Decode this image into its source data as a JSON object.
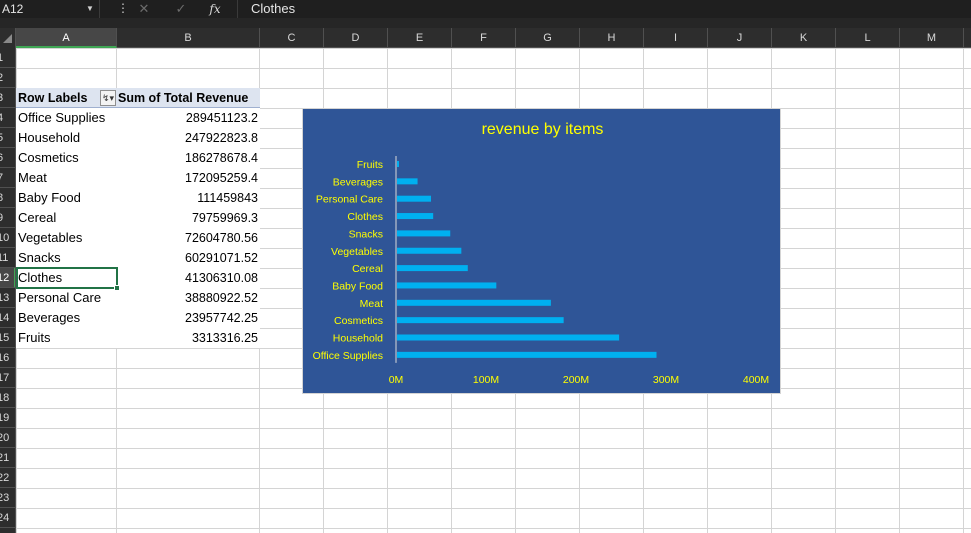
{
  "formula_bar": {
    "name_box": "A12",
    "formula": "Clothes",
    "fx_label": "fx"
  },
  "columns": [
    "A",
    "B",
    "C",
    "D",
    "E",
    "F",
    "G",
    "H",
    "I",
    "J",
    "K",
    "L",
    "M"
  ],
  "rows": [
    "1",
    "2",
    "3",
    "4",
    "5",
    "6",
    "7",
    "8",
    "9",
    "10",
    "11",
    "12",
    "13",
    "14",
    "15",
    "16",
    "17",
    "18",
    "19",
    "20",
    "21",
    "22",
    "23",
    "24"
  ],
  "selected_cell": {
    "column": "A",
    "row": "12"
  },
  "pivot": {
    "header_label": "Row Labels",
    "header_value": "Sum of Total Revenue",
    "rows": [
      {
        "label": "Office Supplies",
        "value": "289451123.2"
      },
      {
        "label": "Household",
        "value": "247922823.8"
      },
      {
        "label": "Cosmetics",
        "value": "186278678.4"
      },
      {
        "label": "Meat",
        "value": "172095259.4"
      },
      {
        "label": "Baby Food",
        "value": "111459843"
      },
      {
        "label": "Cereal",
        "value": "79759969.3"
      },
      {
        "label": "Vegetables",
        "value": "72604780.56"
      },
      {
        "label": "Snacks",
        "value": "60291071.52"
      },
      {
        "label": "Clothes",
        "value": "41306310.08"
      },
      {
        "label": "Personal Care",
        "value": "38880922.52"
      },
      {
        "label": "Beverages",
        "value": "23957742.25"
      },
      {
        "label": "Fruits",
        "value": "3313316.25"
      }
    ]
  },
  "chart_data": {
    "type": "bar",
    "orientation": "horizontal",
    "title": "revenue by items",
    "categories": [
      "Fruits",
      "Beverages",
      "Personal Care",
      "Clothes",
      "Snacks",
      "Vegetables",
      "Cereal",
      "Baby Food",
      "Meat",
      "Cosmetics",
      "Household",
      "Office Supplies"
    ],
    "values": [
      3313316.25,
      23957742.25,
      38880922.52,
      41306310.08,
      60291071.52,
      72604780.56,
      79759969.3,
      111459843,
      172095259.4,
      186278678.4,
      247922823.8,
      289451123.2
    ],
    "xlim": [
      0,
      400000000
    ],
    "xticks": [
      0,
      100000000,
      200000000,
      300000000,
      400000000
    ],
    "xtick_labels": [
      "0M",
      "100M",
      "200M",
      "300M",
      "400M"
    ],
    "legend": "none",
    "grid": false,
    "colors": {
      "background": "#2f5597",
      "bar": "#00b0f0",
      "text": "#ffff00"
    }
  }
}
